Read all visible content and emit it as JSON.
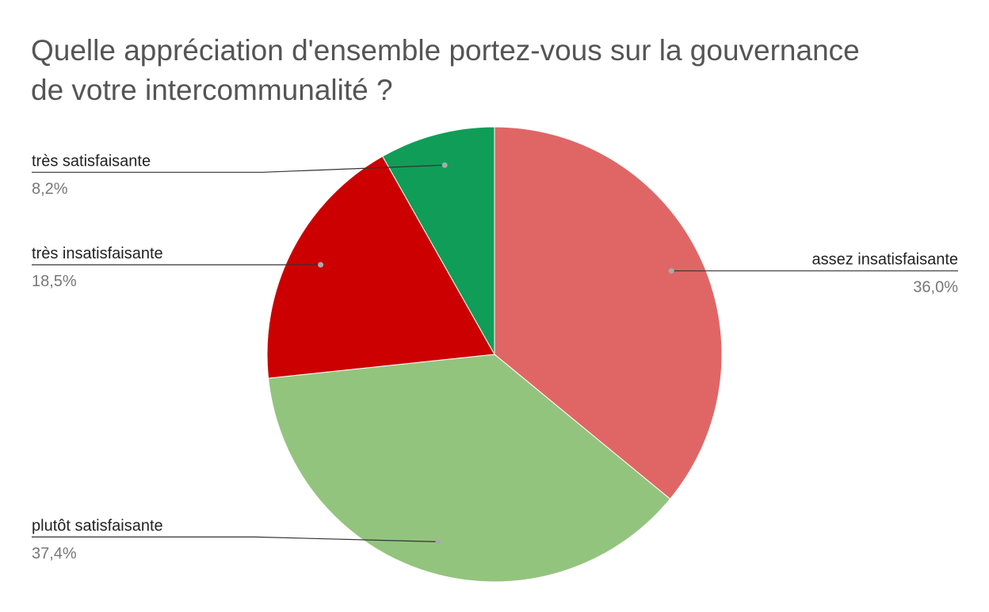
{
  "chart_data": {
    "type": "pie",
    "title_lines": [
      "Quelle appréciation d'ensemble portez-vous sur la gouvernance",
      "de votre intercommunalité ?"
    ],
    "start_angle_deg": 0,
    "direction": "clockwise",
    "slices": [
      {
        "label": "assez insatisfaisante",
        "value": 36.0,
        "value_label": "36,0%",
        "color": "#e06666",
        "label_side": "right"
      },
      {
        "label": "plutôt satisfaisante",
        "value": 37.4,
        "value_label": "37,4%",
        "color": "#93c47d",
        "label_side": "left"
      },
      {
        "label": "très insatisfaisante",
        "value": 18.5,
        "value_label": "18,5%",
        "color": "#cc0000",
        "label_side": "left"
      },
      {
        "label": "très satisfaisante",
        "value": 8.2,
        "value_label": "8,2%",
        "color": "#0f9d58",
        "label_side": "left"
      }
    ],
    "legend": "none",
    "labels": "outside-with-leader-lines"
  }
}
